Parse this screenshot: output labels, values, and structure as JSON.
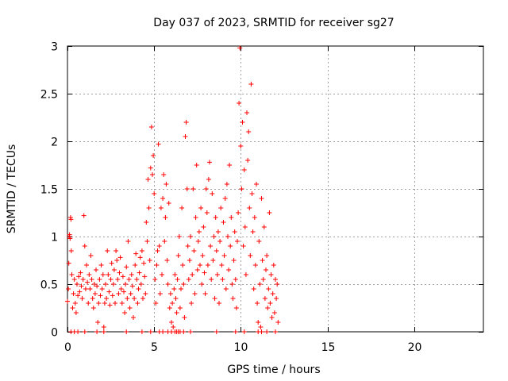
{
  "chart_data": {
    "type": "scatter",
    "title": "Day 037 of 2023, SRMTID for receiver sg27",
    "xlabel": "GPS time / hours",
    "ylabel": "SRMTID / TECUs",
    "xlim": [
      0,
      24
    ],
    "ylim": [
      0,
      3
    ],
    "xticks": [
      0,
      5,
      10,
      15,
      20
    ],
    "yticks": [
      0,
      0.5,
      1,
      1.5,
      2,
      2.5,
      3
    ],
    "xtick_labels": [
      "0",
      "5",
      "10",
      "15",
      "20"
    ],
    "ytick_labels": [
      "0",
      "0.5",
      "1",
      "1.5",
      "2",
      "2.5",
      "3"
    ],
    "grid": true,
    "marker": "+",
    "marker_color": "#ff0000",
    "series": [
      {
        "name": "SRMTID",
        "points": [
          [
            0.0,
            0.32
          ],
          [
            0.05,
            0.45
          ],
          [
            0.08,
            0.72
          ],
          [
            0.1,
            1.0
          ],
          [
            0.12,
            1.02
          ],
          [
            0.15,
            0.98
          ],
          [
            0.18,
            1.2
          ],
          [
            0.2,
            1.18
          ],
          [
            0.22,
            0.85
          ],
          [
            0.25,
            0.6
          ],
          [
            0.3,
            0.25
          ],
          [
            0.35,
            0.4
          ],
          [
            0.4,
            0.55
          ],
          [
            0.45,
            0.3
          ],
          [
            0.5,
            0.2
          ],
          [
            0.55,
            0.5
          ],
          [
            0.6,
            0.38
          ],
          [
            0.65,
            0.58
          ],
          [
            0.7,
            0.42
          ],
          [
            0.75,
            0.62
          ],
          [
            0.8,
            0.48
          ],
          [
            0.85,
            0.35
          ],
          [
            0.9,
            0.55
          ],
          [
            0.95,
            1.22
          ],
          [
            1.0,
            0.9
          ],
          [
            1.05,
            0.45
          ],
          [
            1.1,
            0.7
          ],
          [
            1.15,
            0.52
          ],
          [
            1.2,
            0.3
          ],
          [
            1.25,
            0.6
          ],
          [
            1.3,
            0.45
          ],
          [
            1.35,
            0.8
          ],
          [
            1.4,
            0.55
          ],
          [
            1.45,
            0.35
          ],
          [
            1.5,
            0.25
          ],
          [
            1.55,
            0.5
          ],
          [
            1.6,
            0.4
          ],
          [
            1.65,
            0.65
          ],
          [
            1.7,
            0.48
          ],
          [
            1.75,
            0.1
          ],
          [
            1.8,
            0.3
          ],
          [
            1.85,
            0.55
          ],
          [
            1.9,
            0.38
          ],
          [
            1.95,
            0.7
          ],
          [
            2.0,
            0.45
          ],
          [
            2.05,
            0.6
          ],
          [
            2.1,
            0.05
          ],
          [
            2.15,
            0.3
          ],
          [
            2.2,
            0.5
          ],
          [
            2.25,
            0.35
          ],
          [
            2.3,
            0.85
          ],
          [
            2.35,
            0.6
          ],
          [
            2.4,
            0.42
          ],
          [
            2.45,
            0.28
          ],
          [
            2.5,
            0.55
          ],
          [
            2.55,
            0.72
          ],
          [
            2.6,
            0.38
          ],
          [
            2.65,
            0.5
          ],
          [
            2.7,
            0.65
          ],
          [
            2.75,
            0.3
          ],
          [
            2.8,
            0.85
          ],
          [
            2.85,
            0.75
          ],
          [
            2.9,
            0.55
          ],
          [
            2.95,
            0.4
          ],
          [
            3.0,
            0.62
          ],
          [
            3.05,
            0.78
          ],
          [
            3.1,
            0.45
          ],
          [
            3.15,
            0.3
          ],
          [
            3.2,
            0.58
          ],
          [
            3.25,
            0.42
          ],
          [
            3.3,
            0.2
          ],
          [
            3.35,
            0.5
          ],
          [
            3.4,
            0.68
          ],
          [
            3.45,
            0.35
          ],
          [
            3.5,
            0.95
          ],
          [
            3.55,
            0.55
          ],
          [
            3.6,
            0.25
          ],
          [
            3.65,
            0.4
          ],
          [
            3.7,
            0.6
          ],
          [
            3.75,
            0.48
          ],
          [
            3.8,
            0.15
          ],
          [
            3.85,
            0.35
          ],
          [
            3.9,
            0.7
          ],
          [
            3.95,
            0.82
          ],
          [
            4.0,
            0.55
          ],
          [
            4.05,
            0.3
          ],
          [
            4.1,
            0.45
          ],
          [
            4.15,
            0.62
          ],
          [
            4.2,
            0.78
          ],
          [
            4.25,
            0.5
          ],
          [
            4.3,
            0.85
          ],
          [
            4.35,
            0.35
          ],
          [
            4.4,
            0.72
          ],
          [
            4.45,
            0.58
          ],
          [
            4.5,
            0.4
          ],
          [
            4.55,
            1.15
          ],
          [
            4.6,
            0.95
          ],
          [
            4.65,
            1.6
          ],
          [
            4.7,
            1.3
          ],
          [
            4.75,
            0.75
          ],
          [
            4.8,
            1.72
          ],
          [
            4.85,
            2.15
          ],
          [
            4.9,
            1.65
          ],
          [
            4.95,
            1.85
          ],
          [
            5.0,
            1.45
          ],
          [
            5.05,
            0.55
          ],
          [
            5.1,
            0.3
          ],
          [
            5.15,
            0.7
          ],
          [
            5.2,
            0.85
          ],
          [
            5.25,
            1.97
          ],
          [
            5.3,
            0.9
          ],
          [
            5.35,
            0.4
          ],
          [
            5.4,
            1.3
          ],
          [
            5.45,
            0.6
          ],
          [
            5.5,
            1.4
          ],
          [
            5.55,
            1.65
          ],
          [
            5.6,
            0.95
          ],
          [
            5.65,
            1.2
          ],
          [
            5.7,
            1.55
          ],
          [
            5.75,
            0.75
          ],
          [
            5.8,
            0.5
          ],
          [
            5.85,
            1.35
          ],
          [
            5.9,
            0.25
          ],
          [
            5.95,
            0.4
          ],
          [
            6.0,
            0.1
          ],
          [
            6.05,
            0.3
          ],
          [
            6.1,
            0.05
          ],
          [
            6.15,
            0.45
          ],
          [
            6.2,
            0.6
          ],
          [
            6.25,
            0.35
          ],
          [
            6.3,
            0.2
          ],
          [
            6.35,
            0.55
          ],
          [
            6.4,
            0.8
          ],
          [
            6.45,
            1.0
          ],
          [
            6.5,
            0.25
          ],
          [
            6.55,
            0.45
          ],
          [
            6.6,
            1.3
          ],
          [
            6.65,
            0.7
          ],
          [
            6.7,
            0.5
          ],
          [
            6.75,
            0.15
          ],
          [
            6.8,
            2.05
          ],
          [
            6.85,
            2.2
          ],
          [
            6.9,
            1.5
          ],
          [
            6.95,
            0.9
          ],
          [
            7.0,
            0.55
          ],
          [
            7.05,
            0.75
          ],
          [
            7.1,
            1.0
          ],
          [
            7.15,
            0.3
          ],
          [
            7.2,
            0.6
          ],
          [
            7.25,
            1.5
          ],
          [
            7.3,
            0.85
          ],
          [
            7.35,
            0.4
          ],
          [
            7.4,
            1.2
          ],
          [
            7.45,
            1.75
          ],
          [
            7.5,
            0.65
          ],
          [
            7.55,
            0.95
          ],
          [
            7.6,
            1.05
          ],
          [
            7.65,
            0.7
          ],
          [
            7.7,
            1.3
          ],
          [
            7.75,
            0.5
          ],
          [
            7.8,
            0.8
          ],
          [
            7.85,
            1.1
          ],
          [
            7.9,
            0.62
          ],
          [
            7.95,
            0.4
          ],
          [
            8.0,
            1.5
          ],
          [
            8.05,
            1.25
          ],
          [
            8.1,
            0.7
          ],
          [
            8.15,
            1.6
          ],
          [
            8.2,
            1.78
          ],
          [
            8.25,
            0.9
          ],
          [
            8.3,
            0.55
          ],
          [
            8.35,
            1.45
          ],
          [
            8.4,
            0.75
          ],
          [
            8.45,
            1.0
          ],
          [
            8.5,
            0.35
          ],
          [
            8.55,
            1.2
          ],
          [
            8.6,
            0.85
          ],
          [
            8.65,
            0.6
          ],
          [
            8.7,
            1.05
          ],
          [
            8.75,
            0.3
          ],
          [
            8.8,
            0.95
          ],
          [
            8.85,
            1.3
          ],
          [
            8.9,
            0.7
          ],
          [
            8.95,
            0.55
          ],
          [
            9.0,
            1.15
          ],
          [
            9.05,
            0.8
          ],
          [
            9.1,
            1.4
          ],
          [
            9.15,
            0.45
          ],
          [
            9.2,
            1.55
          ],
          [
            9.25,
            1.0
          ],
          [
            9.3,
            0.65
          ],
          [
            9.35,
            1.75
          ],
          [
            9.4,
            0.9
          ],
          [
            9.45,
            1.2
          ],
          [
            9.5,
            0.5
          ],
          [
            9.55,
            0.35
          ],
          [
            9.6,
            0.75
          ],
          [
            9.65,
            1.05
          ],
          [
            9.7,
            0.55
          ],
          [
            9.75,
            0.25
          ],
          [
            9.8,
            0.95
          ],
          [
            9.85,
            1.25
          ],
          [
            9.9,
            2.4
          ],
          [
            9.95,
            2.98
          ],
          [
            10.0,
            1.95
          ],
          [
            10.05,
            1.5
          ],
          [
            10.1,
            2.2
          ],
          [
            10.15,
            0.9
          ],
          [
            10.2,
            1.7
          ],
          [
            10.25,
            1.1
          ],
          [
            10.3,
            0.6
          ],
          [
            10.35,
            2.3
          ],
          [
            10.4,
            1.8
          ],
          [
            10.45,
            2.1
          ],
          [
            10.5,
            1.3
          ],
          [
            10.55,
            0.8
          ],
          [
            10.6,
            2.6
          ],
          [
            10.65,
            1.45
          ],
          [
            10.7,
            1.05
          ],
          [
            10.75,
            0.45
          ],
          [
            10.8,
            1.2
          ],
          [
            10.85,
            0.7
          ],
          [
            10.9,
            1.55
          ],
          [
            10.95,
            0.3
          ],
          [
            11.0,
            0.1
          ],
          [
            11.05,
            0.95
          ],
          [
            11.1,
            0.5
          ],
          [
            11.15,
            0.05
          ],
          [
            11.2,
            1.4
          ],
          [
            11.25,
            0.75
          ],
          [
            11.3,
            0.55
          ],
          [
            11.35,
            1.1
          ],
          [
            11.4,
            0.35
          ],
          [
            11.45,
            0.65
          ],
          [
            11.5,
            0.8
          ],
          [
            11.55,
            0.25
          ],
          [
            11.6,
            0.45
          ],
          [
            11.65,
            1.25
          ],
          [
            11.7,
            0.3
          ],
          [
            11.75,
            0.6
          ],
          [
            11.8,
            0.15
          ],
          [
            11.85,
            0.4
          ],
          [
            11.9,
            0.7
          ],
          [
            11.95,
            0.2
          ],
          [
            12.0,
            0.55
          ],
          [
            12.05,
            0.35
          ],
          [
            12.1,
            0.5
          ],
          [
            12.15,
            0.1
          ],
          [
            0.2,
            0.0
          ],
          [
            0.4,
            0.0
          ],
          [
            0.6,
            0.0
          ],
          [
            1.0,
            0.0
          ],
          [
            1.7,
            0.0
          ],
          [
            2.1,
            0.0
          ],
          [
            3.4,
            0.0
          ],
          [
            4.3,
            0.0
          ],
          [
            4.8,
            0.0
          ],
          [
            5.3,
            0.0
          ],
          [
            5.5,
            0.0
          ],
          [
            5.8,
            0.0
          ],
          [
            6.0,
            0.0
          ],
          [
            6.2,
            0.0
          ],
          [
            6.3,
            0.0
          ],
          [
            6.4,
            0.0
          ],
          [
            6.5,
            0.0
          ],
          [
            6.7,
            0.0
          ],
          [
            7.1,
            0.0
          ],
          [
            8.6,
            0.0
          ],
          [
            9.7,
            0.0
          ],
          [
            10.2,
            0.0
          ],
          [
            11.0,
            0.0
          ],
          [
            11.2,
            0.0
          ],
          [
            11.5,
            0.0
          ],
          [
            12.0,
            0.0
          ]
        ]
      }
    ]
  }
}
